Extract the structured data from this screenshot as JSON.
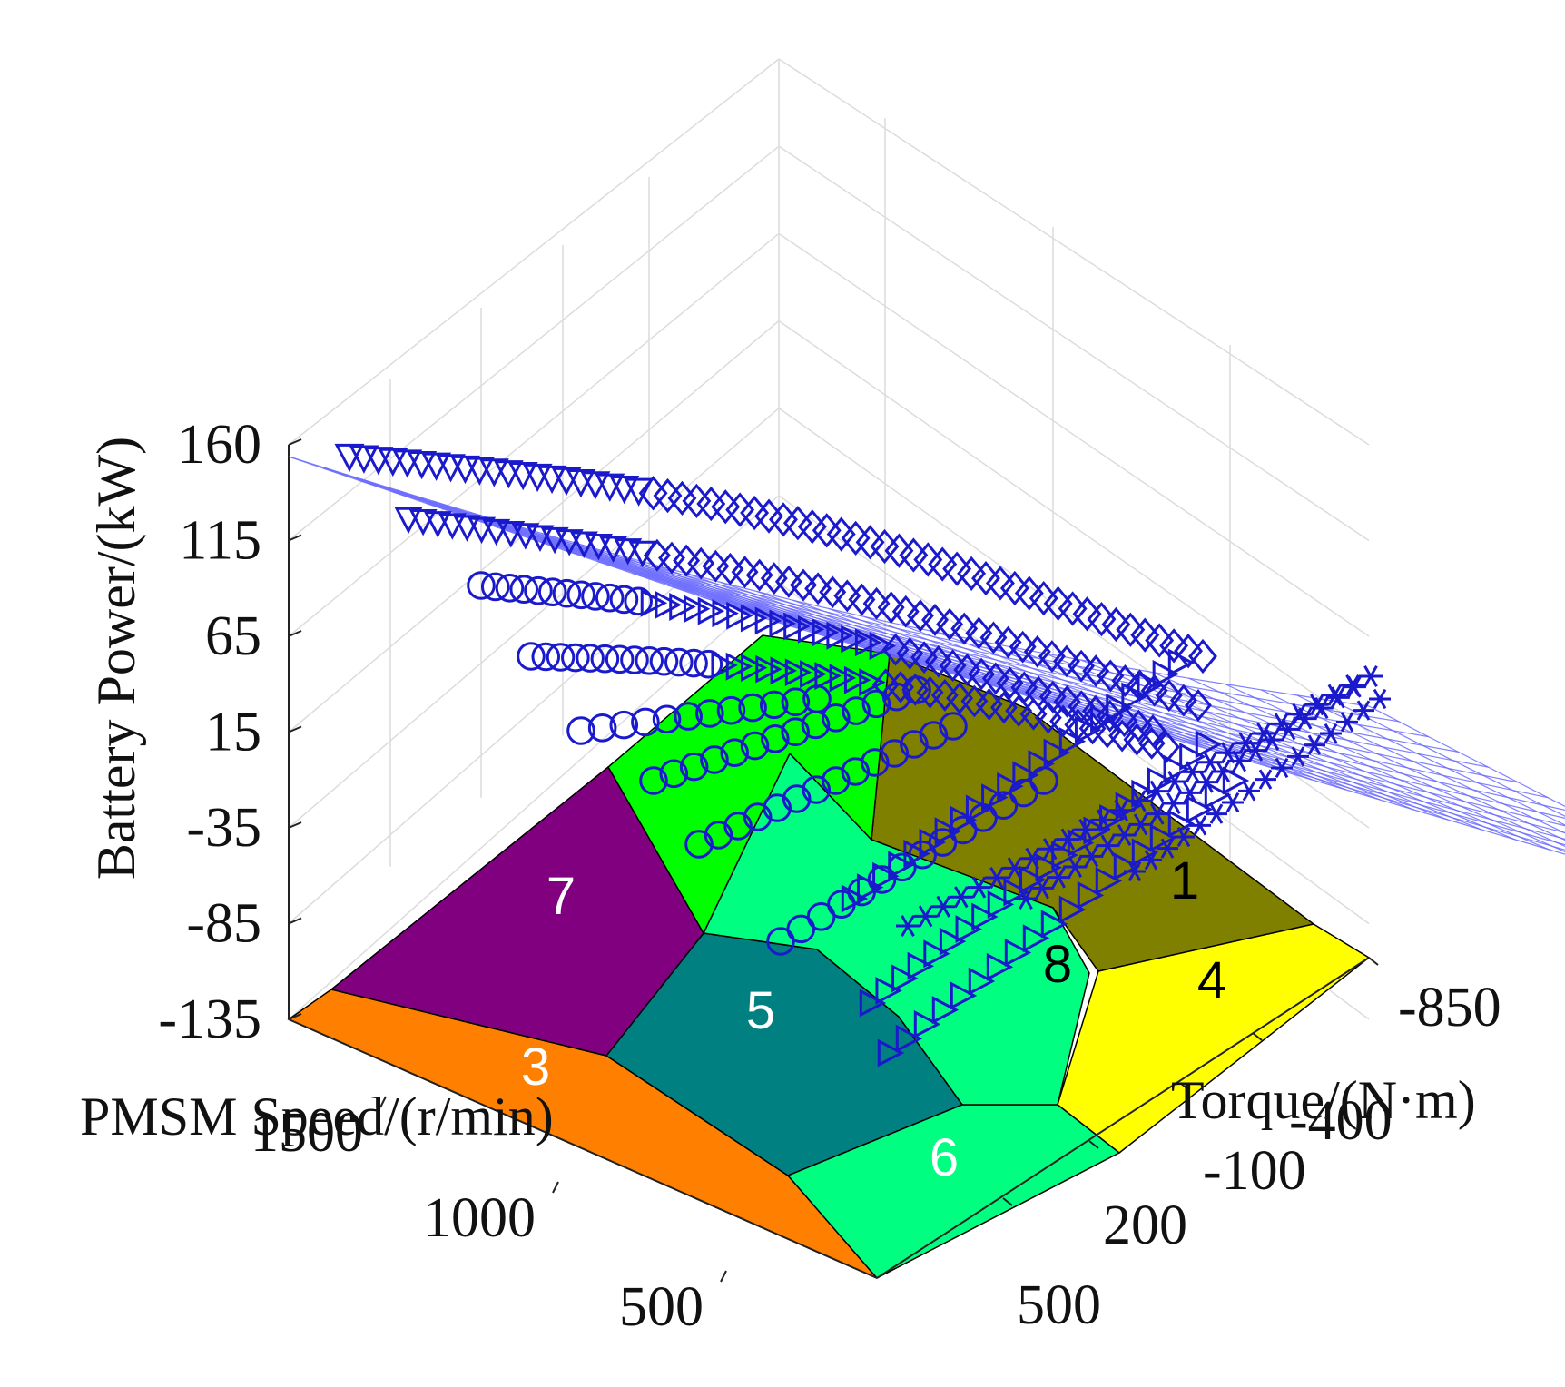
{
  "chart_data": {
    "type": "surface3d",
    "title": "",
    "zlabel": "Battery Power/(kW)",
    "xlabel": "PMSM Speed/(r/min)",
    "ylabel": "Torque/(N·m)",
    "z_ticks": [
      "160",
      "115",
      "65",
      "15",
      "-35",
      "-85",
      "-135"
    ],
    "z_tick_values": [
      160,
      115,
      65,
      15,
      -35,
      -85,
      -135
    ],
    "speed_ticks": [
      "1500",
      "1000",
      "500"
    ],
    "speed_tick_values": [
      1500,
      1000,
      500
    ],
    "torque_ticks": [
      "-850",
      "-400",
      "-100",
      "200",
      "500"
    ],
    "torque_tick_values": [
      -850,
      -400,
      -100,
      200,
      500
    ],
    "zlim": [
      -135,
      160
    ],
    "floor_regions": [
      {
        "label": "1",
        "color": "#808000",
        "text_color": "#000000"
      },
      {
        "label": "3",
        "color": "#ff8000",
        "text_color": "#ffffff"
      },
      {
        "label": "4",
        "color": "#ffff00",
        "text_color": "#000000"
      },
      {
        "label": "5",
        "color": "#008080",
        "text_color": "#ffffff"
      },
      {
        "label": "6",
        "color": "#00ff80",
        "text_color": "#ffffff"
      },
      {
        "label": "7",
        "color": "#800080",
        "text_color": "#ffffff"
      },
      {
        "label": "8",
        "color": "#00ff80",
        "text_color": "#000000"
      },
      {
        "label": "",
        "color": "#00ff00",
        "text_color": "#000000"
      }
    ],
    "surface_color": "#6a6aff",
    "marker_color": "#1a1acc",
    "series": [
      {
        "name": "triangle-down",
        "marker": "triangle-down"
      },
      {
        "name": "circle",
        "marker": "circle"
      },
      {
        "name": "triangle-right",
        "marker": "triangle-right"
      },
      {
        "name": "diamond",
        "marker": "diamond"
      },
      {
        "name": "asterisk",
        "marker": "asterisk"
      }
    ],
    "grid": true
  }
}
